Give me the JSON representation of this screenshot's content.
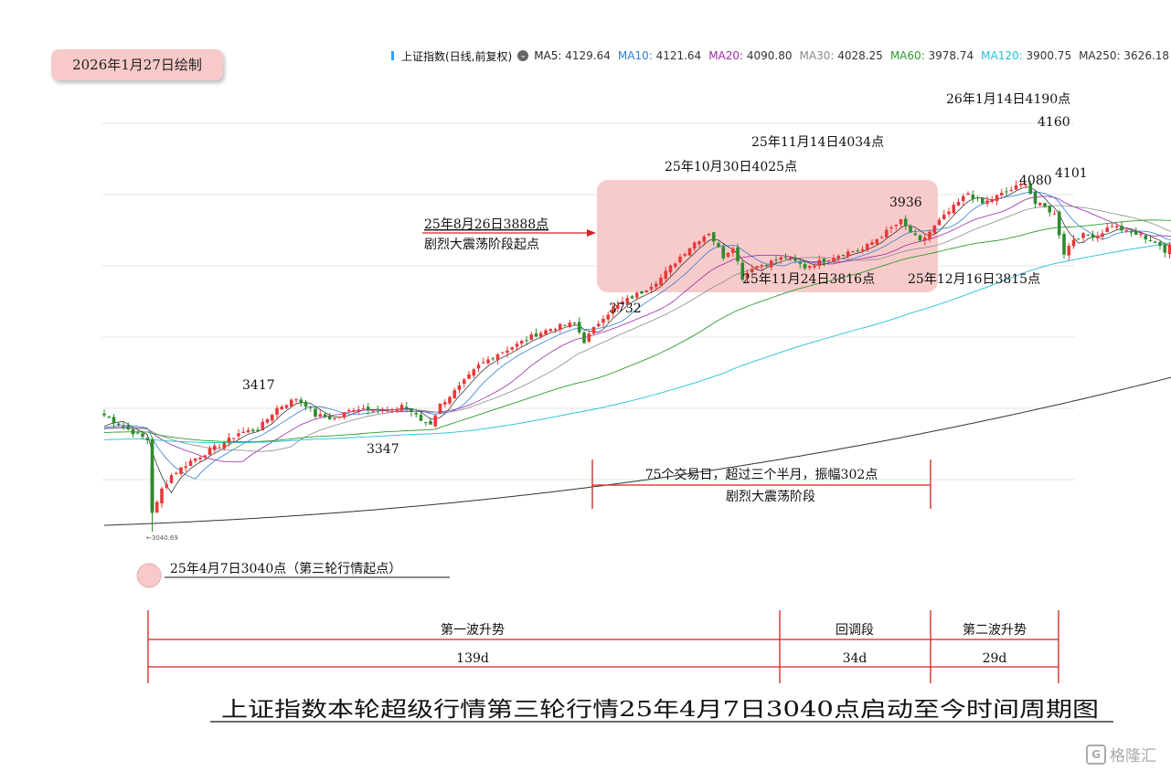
{
  "date_badge": "2026年1月27日绘制",
  "legend": {
    "title": "上证指数(日线,前复权)",
    "items": [
      {
        "label": "MA5: 4129.64",
        "color": "#222222"
      },
      {
        "label": "MA10: 4121.64",
        "color": "#2b7fd4"
      },
      {
        "label": "MA20: 4090.80",
        "color": "#9b2aa8"
      },
      {
        "label": "MA30: 4028.25",
        "color": "#8a8a8a"
      },
      {
        "label": "MA60: 3978.74",
        "color": "#2e9a2e"
      },
      {
        "label": "MA120: 3900.75",
        "color": "#22c1d6"
      },
      {
        "label": "MA250: 3626.18",
        "color": "#333333"
      }
    ]
  },
  "chart_data": {
    "type": "candlestick",
    "title": "上证指数本轮超级行情第三轮行情25年4月7日3040点启动至今时间周期图",
    "ylim": [
      3000,
      4230
    ],
    "x_range": [
      "2025-04",
      "2026-01-27"
    ],
    "up_color": "#e8393a",
    "down_color": "#2e8b2e",
    "low_label": "←3040.69",
    "key_points": [
      {
        "date": "2025-04-07",
        "value": 3040,
        "label": "25年4月7日3040点（第三轮行情起点）"
      },
      {
        "value": 3417,
        "label": "3417"
      },
      {
        "value": 3347,
        "label": "3347"
      },
      {
        "date": "2025-08-26",
        "value": 3888,
        "label": "25年8月26日3888点"
      },
      {
        "label": "剧烈大震荡阶段起点"
      },
      {
        "value": 3732,
        "label": "3732"
      },
      {
        "date": "2025-10-30",
        "value": 4025,
        "label": "25年10月30日4025点"
      },
      {
        "date": "2025-11-14",
        "value": 4034,
        "label": "25年11月14日4034点"
      },
      {
        "value": 3936,
        "label": "3936"
      },
      {
        "date": "2025-11-24",
        "value": 3816,
        "label": "25年11月24日3816点"
      },
      {
        "date": "2025-12-16",
        "value": 3815,
        "label": "25年12月16日3815点"
      },
      {
        "date": "2026-01-14",
        "value": 4190,
        "label": "26年1月14日4190点"
      },
      {
        "value": 4160,
        "label": "4160"
      },
      {
        "value": 4101,
        "label": "4101"
      },
      {
        "value": 4080,
        "label": "4080"
      }
    ],
    "consolidation": {
      "line1": "75个交易日，超过三个半月，振幅302点",
      "line2": "剧烈大震荡阶段"
    },
    "timeline": [
      {
        "phase": "第一波升势",
        "days": "139d"
      },
      {
        "phase": "回调段",
        "days": "34d"
      },
      {
        "phase": "第二波升势",
        "days": "29d"
      }
    ]
  },
  "watermark": "格隆汇"
}
